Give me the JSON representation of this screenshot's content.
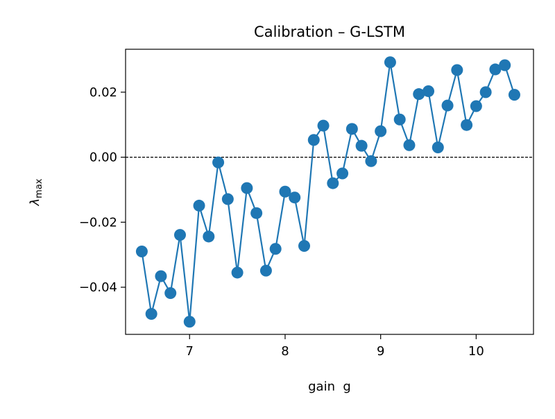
{
  "chart_data": {
    "type": "line",
    "title": "Calibration – G-LSTM",
    "xlabel": "gain  g",
    "ylabel_symbol": "λ",
    "ylabel_subscript": "max",
    "xlim": [
      6.33,
      10.6
    ],
    "ylim": [
      -0.0545,
      0.0332
    ],
    "x_ticks": [
      7,
      8,
      9,
      10
    ],
    "x_tick_labels": [
      "7",
      "8",
      "9",
      "10"
    ],
    "y_ticks": [
      -0.04,
      -0.02,
      0.0,
      0.02
    ],
    "y_tick_labels": [
      "−0.04",
      "−0.02",
      "0.00",
      "0.02"
    ],
    "reference_line": 0.0,
    "grid": false,
    "series_color": "#1f77b4",
    "series": [
      {
        "x": [
          6.5,
          6.6,
          6.7,
          6.8,
          6.9,
          7.0,
          7.1,
          7.2,
          7.3,
          7.4,
          7.5,
          7.6,
          7.7,
          7.8,
          7.9,
          8.0,
          8.1,
          8.2,
          8.3,
          8.4,
          8.5,
          8.6,
          8.7,
          8.8,
          8.9,
          9.0,
          9.1,
          9.2,
          9.3,
          9.4,
          9.5,
          9.6,
          9.7,
          9.8,
          9.9,
          10.0,
          10.1,
          10.2,
          10.3,
          10.4
        ],
        "values": [
          -0.029,
          -0.0482,
          -0.0366,
          -0.0418,
          -0.0239,
          -0.0506,
          -0.0149,
          -0.0244,
          -0.0016,
          -0.0129,
          -0.0355,
          -0.0095,
          -0.0172,
          -0.0349,
          -0.0282,
          -0.0106,
          -0.0124,
          -0.0273,
          0.0053,
          0.0097,
          -0.008,
          -0.005,
          0.0087,
          0.0035,
          -0.0012,
          0.008,
          0.0292,
          0.0116,
          0.0037,
          0.0194,
          0.0203,
          0.003,
          0.0159,
          0.0268,
          0.0099,
          0.0157,
          0.02,
          0.027,
          0.0283,
          0.0192
        ]
      }
    ]
  }
}
